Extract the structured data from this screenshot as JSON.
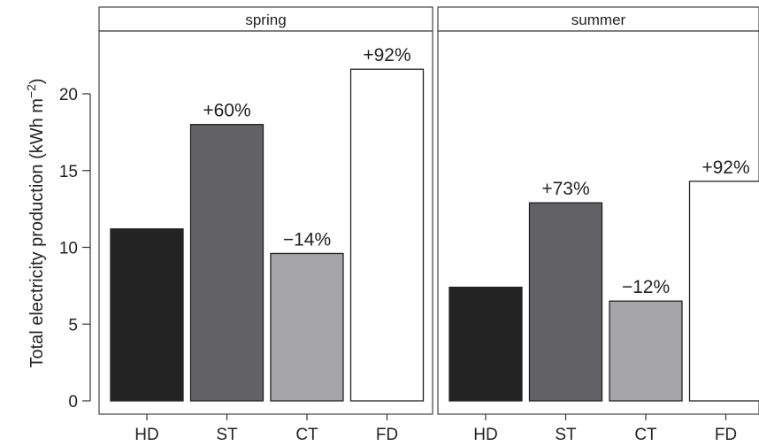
{
  "chart_data": {
    "type": "bar",
    "ylabel_main": "Total electricity production (kWh m",
    "ylabel_unit_sup": "−2",
    "ylabel_close": ")",
    "ylim": [
      0,
      24
    ],
    "yticks": [
      "0",
      "5",
      "10",
      "15",
      "20"
    ],
    "ytick_values": [
      0,
      5,
      10,
      15,
      20
    ],
    "categories": [
      "HD",
      "ST",
      "CT",
      "FD"
    ],
    "bar_colors": [
      "#232323",
      "#626266",
      "#a5a5a7",
      "#ffffff"
    ],
    "panels": [
      {
        "name": "spring",
        "values": [
          11.2,
          18.0,
          9.6,
          21.6
        ],
        "labels": [
          "",
          "+60%",
          "−14%",
          "+92%"
        ]
      },
      {
        "name": "summer",
        "values": [
          7.4,
          12.9,
          6.5,
          14.3
        ],
        "labels": [
          "",
          "+73%",
          "−12%",
          "+92%"
        ]
      }
    ]
  }
}
